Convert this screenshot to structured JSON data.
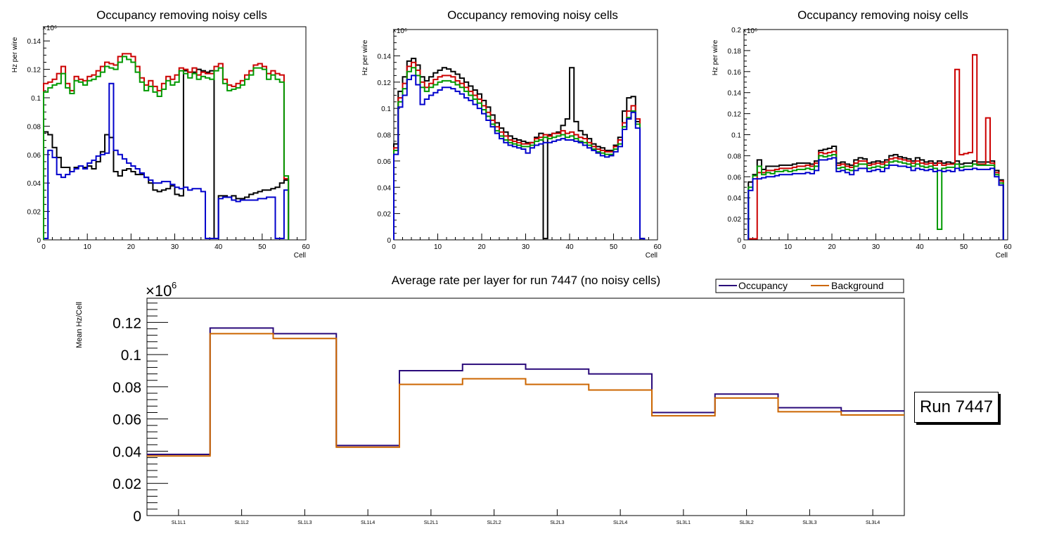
{
  "chart_data": [
    {
      "type": "line",
      "title": "Occupancy removing noisy cells",
      "xlabel": "Cell",
      "ylabel": "Hz per wire",
      "exponent": "×10⁶",
      "xlim": [
        0,
        60
      ],
      "ylim": [
        0,
        0.15
      ],
      "xticks": [
        "0",
        "10",
        "20",
        "30",
        "40",
        "50",
        "60"
      ],
      "yticks": [
        "0",
        "0.02",
        "0.04",
        "0.06",
        "0.08",
        "0.1",
        "0.12",
        "0.14"
      ],
      "series": [
        {
          "name": "black",
          "color": "#000000",
          "start": 0,
          "values": [
            0.076,
            0.074,
            0.065,
            0.058,
            0.051,
            0.051,
            0.048,
            0.051,
            0.052,
            0.051,
            0.052,
            0.05,
            0.055,
            0.062,
            0.074,
            0.072,
            0.048,
            0.045,
            0.049,
            0.05,
            0.048,
            0.046,
            0.046,
            0.044,
            0.04,
            0.035,
            0.034,
            0.035,
            0.036,
            0.038,
            0.032,
            0.031,
            0.119,
            0.118,
            0.118,
            0.12,
            0.119,
            0.118,
            0.119,
            0.001,
            0.031,
            0.031,
            0.03,
            0.031,
            0.029,
            0.029,
            0.03,
            0.032,
            0.033,
            0.034,
            0.035,
            0.035,
            0.036,
            0.037,
            0.04,
            0.042
          ]
        },
        {
          "name": "blue",
          "color": "#0000cc",
          "start": 0,
          "values": [
            0.001,
            0.063,
            0.058,
            0.046,
            0.044,
            0.046,
            0.048,
            0.05,
            0.052,
            0.05,
            0.054,
            0.056,
            0.059,
            0.06,
            0.061,
            0.11,
            0.063,
            0.06,
            0.057,
            0.054,
            0.052,
            0.05,
            0.047,
            0.044,
            0.042,
            0.04,
            0.04,
            0.041,
            0.041,
            0.039,
            0.037,
            0.036,
            0.037,
            0.035,
            0.036,
            0.036,
            0.034,
            0.001,
            0.001,
            0.001,
            0.029,
            0.03,
            0.03,
            0.028,
            0.027,
            0.028,
            0.028,
            0.028,
            0.028,
            0.029,
            0.029,
            0.03,
            0.03,
            0.001,
            0.001,
            0.035
          ]
        },
        {
          "name": "red",
          "color": "#cc0000",
          "start": 0,
          "values": [
            0.11,
            0.111,
            0.113,
            0.117,
            0.122,
            0.11,
            0.105,
            0.115,
            0.113,
            0.112,
            0.115,
            0.116,
            0.119,
            0.122,
            0.125,
            0.124,
            0.123,
            0.129,
            0.131,
            0.131,
            0.129,
            0.122,
            0.114,
            0.109,
            0.112,
            0.108,
            0.105,
            0.11,
            0.115,
            0.113,
            0.116,
            0.121,
            0.12,
            0.118,
            0.121,
            0.116,
            0.118,
            0.117,
            0.117,
            0.122,
            0.124,
            0.113,
            0.109,
            0.108,
            0.11,
            0.112,
            0.116,
            0.119,
            0.123,
            0.124,
            0.122,
            0.117,
            0.119,
            0.117,
            0.116,
            0.043
          ]
        },
        {
          "name": "green",
          "color": "#009900",
          "start": 0,
          "values": [
            0.104,
            0.107,
            0.109,
            0.11,
            0.117,
            0.107,
            0.103,
            0.112,
            0.111,
            0.109,
            0.112,
            0.113,
            0.115,
            0.118,
            0.122,
            0.121,
            0.12,
            0.125,
            0.129,
            0.127,
            0.125,
            0.118,
            0.111,
            0.105,
            0.108,
            0.104,
            0.101,
            0.106,
            0.112,
            0.109,
            0.111,
            0.119,
            0.117,
            0.114,
            0.117,
            0.113,
            0.115,
            0.114,
            0.113,
            0.119,
            0.121,
            0.11,
            0.105,
            0.106,
            0.107,
            0.109,
            0.113,
            0.116,
            0.121,
            0.121,
            0.12,
            0.113,
            0.116,
            0.113,
            0.111,
            0.045
          ]
        }
      ]
    },
    {
      "type": "line",
      "title": "Occupancy removing noisy cells",
      "xlabel": "Cell",
      "ylabel": "Hz per wire",
      "exponent": "×10⁶",
      "xlim": [
        0,
        60
      ],
      "ylim": [
        0,
        0.16
      ],
      "xticks": [
        "0",
        "10",
        "20",
        "30",
        "40",
        "50",
        "60"
      ],
      "yticks": [
        "0",
        "0.02",
        "0.04",
        "0.06",
        "0.08",
        "0.1",
        "0.12",
        "0.14"
      ],
      "series": [
        {
          "name": "black",
          "color": "#000000",
          "start": 0,
          "values": [
            0.073,
            0.113,
            0.124,
            0.136,
            0.138,
            0.133,
            0.124,
            0.121,
            0.124,
            0.127,
            0.129,
            0.131,
            0.13,
            0.128,
            0.126,
            0.123,
            0.12,
            0.117,
            0.114,
            0.111,
            0.106,
            0.101,
            0.095,
            0.089,
            0.085,
            0.082,
            0.079,
            0.077,
            0.076,
            0.075,
            0.074,
            0.074,
            0.078,
            0.081,
            0.001,
            0.08,
            0.081,
            0.082,
            0.087,
            0.092,
            0.131,
            0.09,
            0.083,
            0.08,
            0.077,
            0.073,
            0.071,
            0.07,
            0.068,
            0.068,
            0.072,
            0.078,
            0.098,
            0.108,
            0.109,
            0.09,
            0.001
          ]
        },
        {
          "name": "red",
          "color": "#cc0000",
          "start": 0,
          "values": [
            0.07,
            0.108,
            0.119,
            0.132,
            0.135,
            0.129,
            0.12,
            0.116,
            0.119,
            0.122,
            0.124,
            0.125,
            0.125,
            0.124,
            0.121,
            0.119,
            0.116,
            0.113,
            0.11,
            0.107,
            0.102,
            0.097,
            0.091,
            0.086,
            0.082,
            0.079,
            0.076,
            0.075,
            0.074,
            0.073,
            0.073,
            0.074,
            0.077,
            0.078,
            0.08,
            0.079,
            0.081,
            0.081,
            0.083,
            0.081,
            0.082,
            0.08,
            0.078,
            0.077,
            0.074,
            0.071,
            0.069,
            0.068,
            0.067,
            0.067,
            0.071,
            0.076,
            0.089,
            0.098,
            0.102,
            0.092,
            0.001
          ]
        },
        {
          "name": "green",
          "color": "#009900",
          "start": 0,
          "values": [
            0.068,
            0.105,
            0.115,
            0.128,
            0.131,
            0.125,
            0.116,
            0.113,
            0.116,
            0.118,
            0.12,
            0.121,
            0.121,
            0.12,
            0.118,
            0.116,
            0.113,
            0.11,
            0.107,
            0.104,
            0.099,
            0.094,
            0.088,
            0.083,
            0.079,
            0.076,
            0.074,
            0.073,
            0.072,
            0.071,
            0.071,
            0.072,
            0.075,
            0.076,
            0.078,
            0.077,
            0.078,
            0.079,
            0.08,
            0.078,
            0.079,
            0.077,
            0.075,
            0.074,
            0.072,
            0.069,
            0.067,
            0.066,
            0.065,
            0.065,
            0.069,
            0.073,
            0.086,
            0.093,
            0.098,
            0.088,
            0.001
          ]
        },
        {
          "name": "blue",
          "color": "#0000cc",
          "start": 0,
          "values": [
            0.065,
            0.101,
            0.11,
            0.122,
            0.125,
            0.118,
            0.103,
            0.107,
            0.11,
            0.112,
            0.114,
            0.116,
            0.116,
            0.115,
            0.113,
            0.111,
            0.108,
            0.106,
            0.103,
            0.1,
            0.096,
            0.091,
            0.086,
            0.081,
            0.077,
            0.074,
            0.072,
            0.071,
            0.07,
            0.069,
            0.066,
            0.07,
            0.072,
            0.073,
            0.074,
            0.074,
            0.075,
            0.076,
            0.077,
            0.076,
            0.076,
            0.075,
            0.074,
            0.072,
            0.07,
            0.068,
            0.066,
            0.064,
            0.063,
            0.064,
            0.067,
            0.071,
            0.084,
            0.092,
            0.097,
            0.085,
            0.001
          ]
        }
      ]
    },
    {
      "type": "line",
      "title": "Occupancy removing noisy cells",
      "xlabel": "Cell",
      "ylabel": "Hz per wire",
      "exponent": "×10⁶",
      "xlim": [
        0,
        60
      ],
      "ylim": [
        0,
        0.2
      ],
      "xticks": [
        "0",
        "10",
        "20",
        "30",
        "40",
        "50",
        "60"
      ],
      "yticks": [
        "0",
        "0.02",
        "0.04",
        "0.06",
        "0.08",
        "0.1",
        "0.12",
        "0.14",
        "0.16",
        "0.18",
        "0.2"
      ],
      "series": [
        {
          "name": "black",
          "color": "#000000",
          "start": 1,
          "values": [
            0.055,
            0.062,
            0.076,
            0.067,
            0.07,
            0.07,
            0.07,
            0.071,
            0.071,
            0.071,
            0.072,
            0.073,
            0.073,
            0.073,
            0.072,
            0.075,
            0.085,
            0.086,
            0.087,
            0.089,
            0.073,
            0.074,
            0.072,
            0.071,
            0.076,
            0.078,
            0.077,
            0.073,
            0.074,
            0.075,
            0.074,
            0.076,
            0.08,
            0.081,
            0.079,
            0.078,
            0.077,
            0.075,
            0.078,
            0.076,
            0.074,
            0.075,
            0.073,
            0.075,
            0.073,
            0.074,
            0.073,
            0.075,
            0.072,
            0.073,
            0.073,
            0.075,
            0.074,
            0.074,
            0.074,
            0.075,
            0.066,
            0.057
          ]
        },
        {
          "name": "red",
          "color": "#cc0000",
          "start": 1,
          "values": [
            0.001,
            0.001,
            0.064,
            0.064,
            0.066,
            0.066,
            0.067,
            0.068,
            0.068,
            0.068,
            0.069,
            0.07,
            0.07,
            0.071,
            0.07,
            0.073,
            0.083,
            0.082,
            0.083,
            0.084,
            0.071,
            0.072,
            0.07,
            0.069,
            0.073,
            0.075,
            0.075,
            0.071,
            0.072,
            0.073,
            0.072,
            0.074,
            0.077,
            0.078,
            0.077,
            0.076,
            0.075,
            0.073,
            0.075,
            0.073,
            0.072,
            0.073,
            0.071,
            0.073,
            0.071,
            0.072,
            0.072,
            0.162,
            0.081,
            0.082,
            0.083,
            0.176,
            0.072,
            0.072,
            0.116,
            0.073,
            0.064,
            0.056
          ]
        },
        {
          "name": "green",
          "color": "#009900",
          "start": 1,
          "values": [
            0.05,
            0.061,
            0.07,
            0.062,
            0.064,
            0.063,
            0.065,
            0.065,
            0.066,
            0.065,
            0.066,
            0.067,
            0.067,
            0.068,
            0.067,
            0.07,
            0.08,
            0.079,
            0.08,
            0.081,
            0.068,
            0.069,
            0.067,
            0.066,
            0.07,
            0.072,
            0.072,
            0.068,
            0.069,
            0.07,
            0.069,
            0.071,
            0.074,
            0.075,
            0.074,
            0.073,
            0.072,
            0.07,
            0.072,
            0.07,
            0.069,
            0.07,
            0.068,
            0.01,
            0.068,
            0.069,
            0.069,
            0.072,
            0.069,
            0.07,
            0.07,
            0.072,
            0.071,
            0.071,
            0.071,
            0.071,
            0.062,
            0.054
          ]
        },
        {
          "name": "blue",
          "color": "#0000cc",
          "start": 1,
          "values": [
            0.047,
            0.058,
            0.058,
            0.059,
            0.06,
            0.06,
            0.061,
            0.062,
            0.062,
            0.062,
            0.063,
            0.063,
            0.063,
            0.064,
            0.063,
            0.066,
            0.076,
            0.076,
            0.077,
            0.078,
            0.065,
            0.066,
            0.064,
            0.062,
            0.066,
            0.068,
            0.068,
            0.065,
            0.066,
            0.067,
            0.065,
            0.068,
            0.071,
            0.071,
            0.07,
            0.07,
            0.069,
            0.066,
            0.068,
            0.067,
            0.066,
            0.067,
            0.065,
            0.066,
            0.065,
            0.066,
            0.065,
            0.068,
            0.066,
            0.067,
            0.067,
            0.068,
            0.067,
            0.067,
            0.067,
            0.068,
            0.06,
            0.052
          ]
        }
      ]
    },
    {
      "type": "line",
      "title": "Average rate per layer for run 7447 (no noisy cells)",
      "xlabel": "",
      "ylabel": "Mean Hz/Cell",
      "exponent": "×10",
      "exponent_sup": "6",
      "ylim": [
        0,
        0.135
      ],
      "yticks": [
        "0",
        "0.02",
        "0.04",
        "0.06",
        "0.08",
        "0.1",
        "0.12"
      ],
      "categories": [
        "SL1L1",
        "SL1L2",
        "SL1L3",
        "SL1L4",
        "SL2L1",
        "SL2L2",
        "SL2L3",
        "SL2L4",
        "SL3L1",
        "SL3L2",
        "SL3L3",
        "SL3L4"
      ],
      "legend": "top-right",
      "series": [
        {
          "name": "Occupancy",
          "color": "#2a0a7a",
          "values": [
            0.038,
            0.1165,
            0.113,
            0.0435,
            0.09,
            0.094,
            0.091,
            0.088,
            0.064,
            0.0755,
            0.067,
            0.065
          ]
        },
        {
          "name": "Background",
          "color": "#cc6600",
          "values": [
            0.037,
            0.113,
            0.11,
            0.0425,
            0.0815,
            0.085,
            0.0815,
            0.078,
            0.062,
            0.073,
            0.0645,
            0.0625
          ]
        }
      ]
    }
  ],
  "run_label": "Run 7447"
}
